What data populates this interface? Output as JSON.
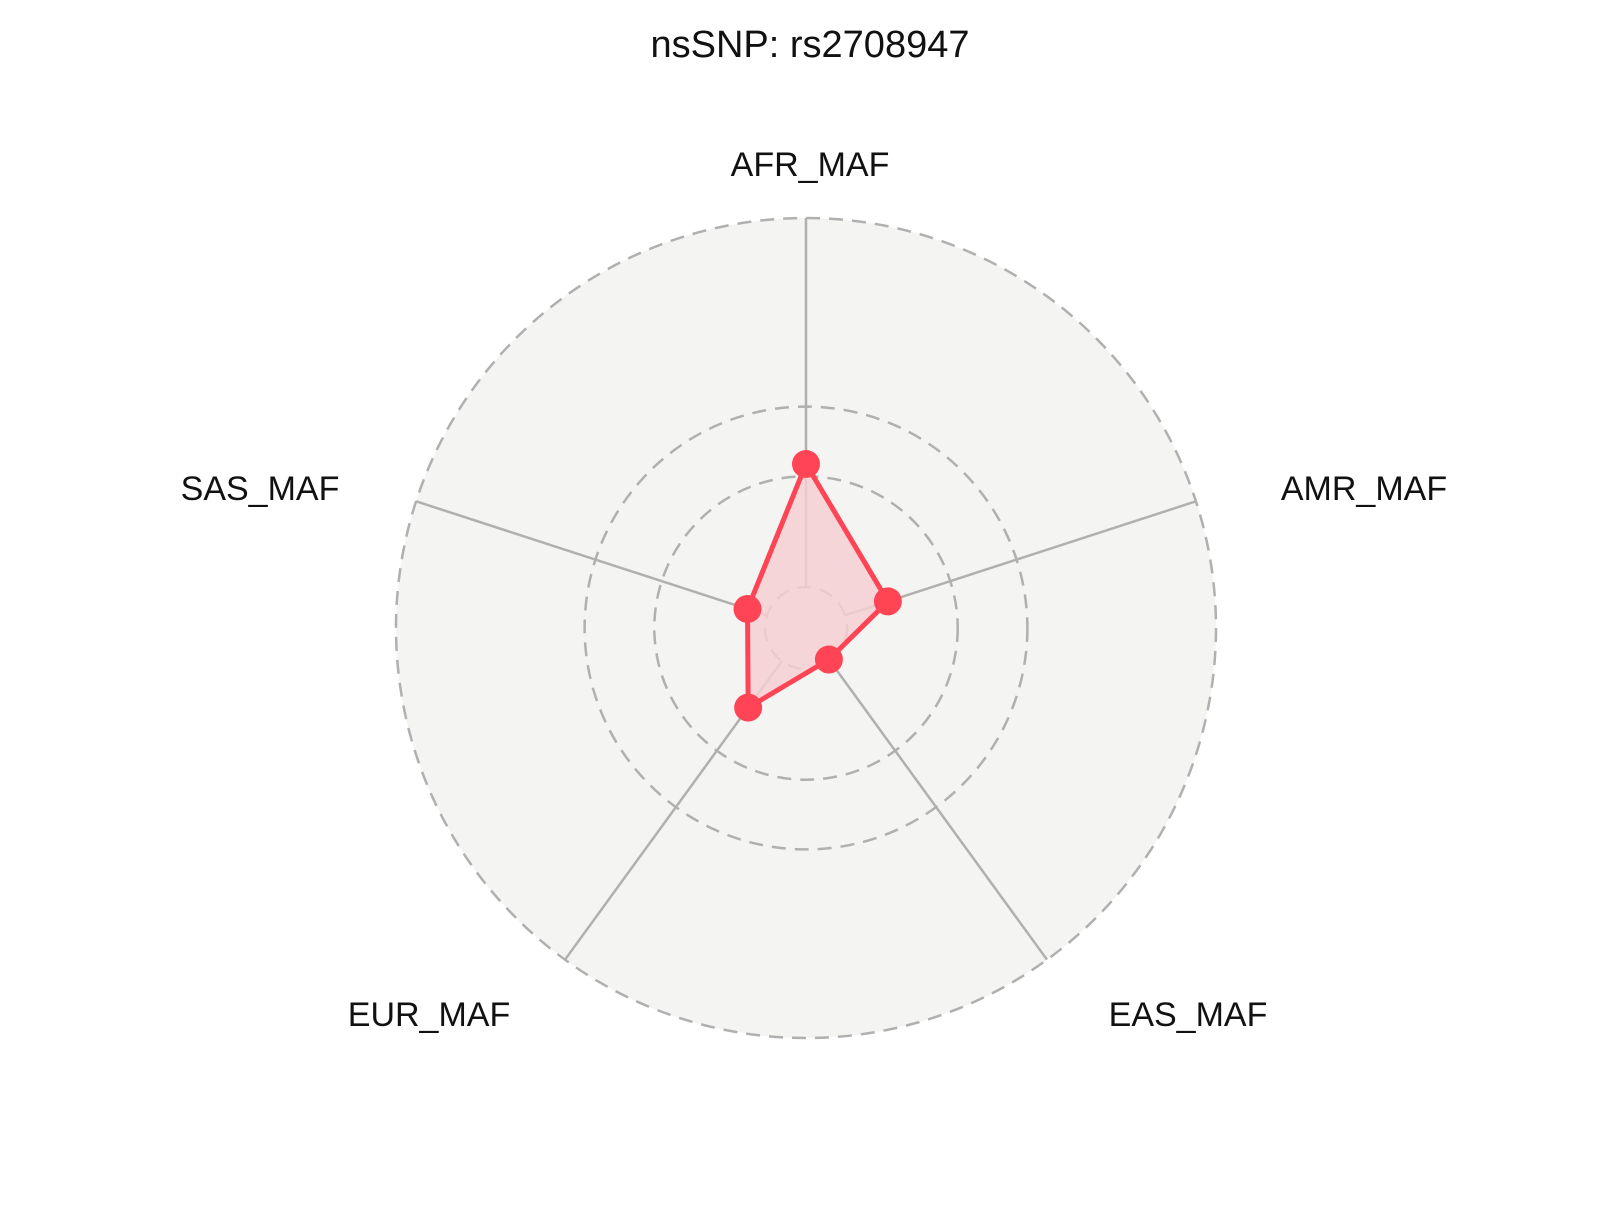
{
  "chart_data": {
    "type": "radar",
    "title": "nsSNP: rs2708947",
    "axes": [
      "AFR_MAF",
      "AMR_MAF",
      "EAS_MAF",
      "EUR_MAF",
      "SAS_MAF"
    ],
    "values": [
      0.4,
      0.21,
      0.095,
      0.24,
      0.15
    ],
    "radial_range": [
      0,
      1
    ],
    "grid_circles": [
      0.1,
      0.37,
      0.54,
      1.0
    ],
    "grid_style": "dashed",
    "tick_labels_shown": false,
    "colors": {
      "series_line": "#ff4455",
      "series_fill": "#f5cfd2",
      "background": "#f4f4f2",
      "grid": "#b0b0b0"
    }
  }
}
